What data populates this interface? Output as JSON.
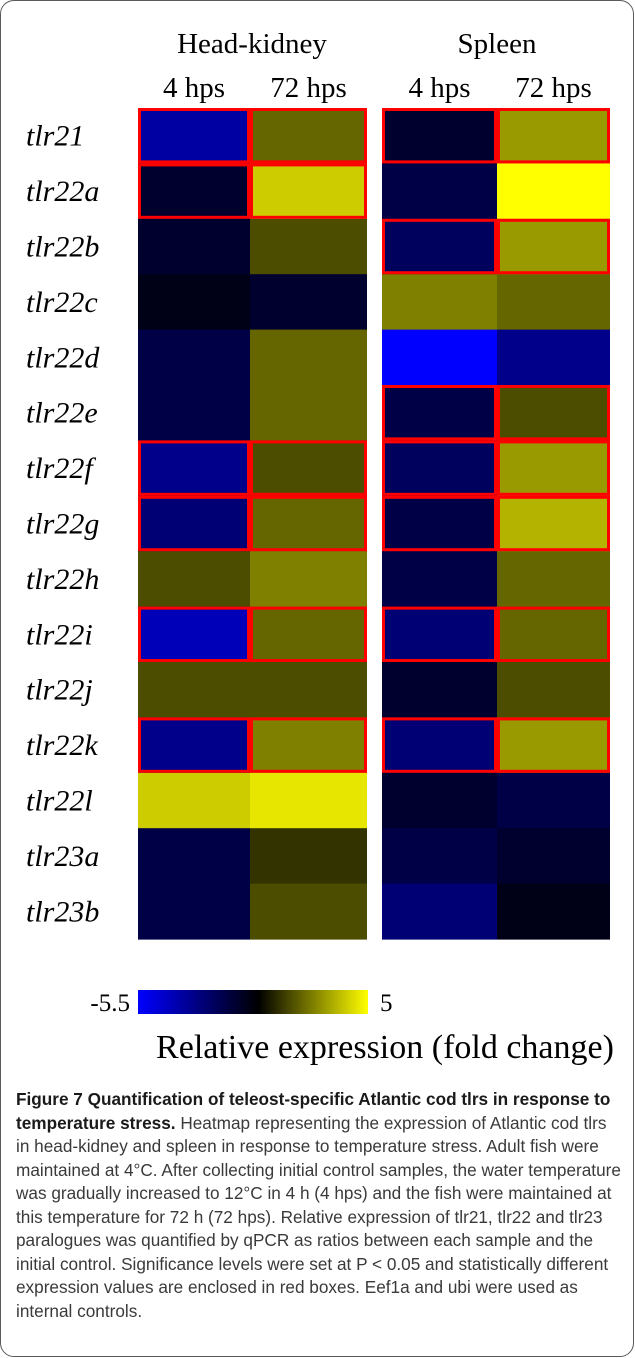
{
  "chart_data": {
    "type": "heatmap",
    "groups": [
      "Head-kidney",
      "Spleen"
    ],
    "conditions": [
      "4 hps",
      "72 hps"
    ],
    "rows": [
      "tlr21",
      "tlr22a",
      "tlr22b",
      "tlr22c",
      "tlr22d",
      "tlr22e",
      "tlr22f",
      "tlr22g",
      "tlr22h",
      "tlr22i",
      "tlr22j",
      "tlr22k",
      "tlr22l",
      "tlr23a",
      "tlr23b"
    ],
    "values": [
      [
        -3.5,
        2.0,
        -1.0,
        3.0
      ],
      [
        -1.0,
        4.0,
        -1.5,
        5.0
      ],
      [
        -1.0,
        1.5,
        -2.0,
        3.0
      ],
      [
        -0.5,
        -1.0,
        2.5,
        2.0
      ],
      [
        -1.5,
        2.0,
        -5.5,
        -3.0
      ],
      [
        -1.5,
        2.0,
        -1.5,
        1.5
      ],
      [
        -3.0,
        1.5,
        -2.0,
        3.0
      ],
      [
        -2.5,
        2.0,
        -1.5,
        3.5
      ],
      [
        1.5,
        2.5,
        -1.5,
        2.0
      ],
      [
        -4.0,
        2.0,
        -2.5,
        2.0
      ],
      [
        1.5,
        1.5,
        -1.0,
        1.5
      ],
      [
        -3.0,
        2.5,
        -2.5,
        3.0
      ],
      [
        4.0,
        4.5,
        -1.0,
        -1.5
      ],
      [
        -1.5,
        1.0,
        -1.5,
        -1.0
      ],
      [
        -1.5,
        1.5,
        -2.5,
        -0.5
      ]
    ],
    "significant": [
      [
        true,
        true,
        true,
        true
      ],
      [
        true,
        true,
        false,
        false
      ],
      [
        false,
        false,
        true,
        true
      ],
      [
        false,
        false,
        false,
        false
      ],
      [
        false,
        false,
        false,
        false
      ],
      [
        false,
        false,
        true,
        true
      ],
      [
        true,
        true,
        true,
        true
      ],
      [
        true,
        true,
        true,
        true
      ],
      [
        false,
        false,
        false,
        false
      ],
      [
        true,
        true,
        true,
        true
      ],
      [
        false,
        false,
        false,
        false
      ],
      [
        true,
        true,
        true,
        true
      ],
      [
        false,
        false,
        false,
        false
      ],
      [
        false,
        false,
        false,
        false
      ],
      [
        false,
        false,
        false,
        false
      ]
    ],
    "scale": {
      "min": -5.5,
      "max": 5,
      "min_label": "-5.5",
      "max_label": "5"
    },
    "colors": {
      "low": "#0000ff",
      "mid": "#000000",
      "high": "#ffff00",
      "highlight": "#ff0000"
    },
    "xlabel": "Relative expression (fold change)"
  },
  "caption": {
    "title": "Figure 7 Quantification of teleost-specific Atlantic cod tlrs in response to temperature stress.",
    "body": "Heatmap representing the expression of Atlantic cod tlrs in head-kidney and spleen in response to temperature stress. Adult fish were maintained at 4°C. After collecting initial control samples, the water temperature was gradually increased to 12°C in 4 h (4 hps) and the fish were maintained at this temperature for 72 h (72 hps). Relative expression of tlr21, tlr22 and tlr23 paralogues was quantified by qPCR as ratios between each sample and the initial control. Significance levels were set at P < 0.05 and statistically different expression values are enclosed in red boxes. Eef1a and ubi were used as internal controls."
  }
}
